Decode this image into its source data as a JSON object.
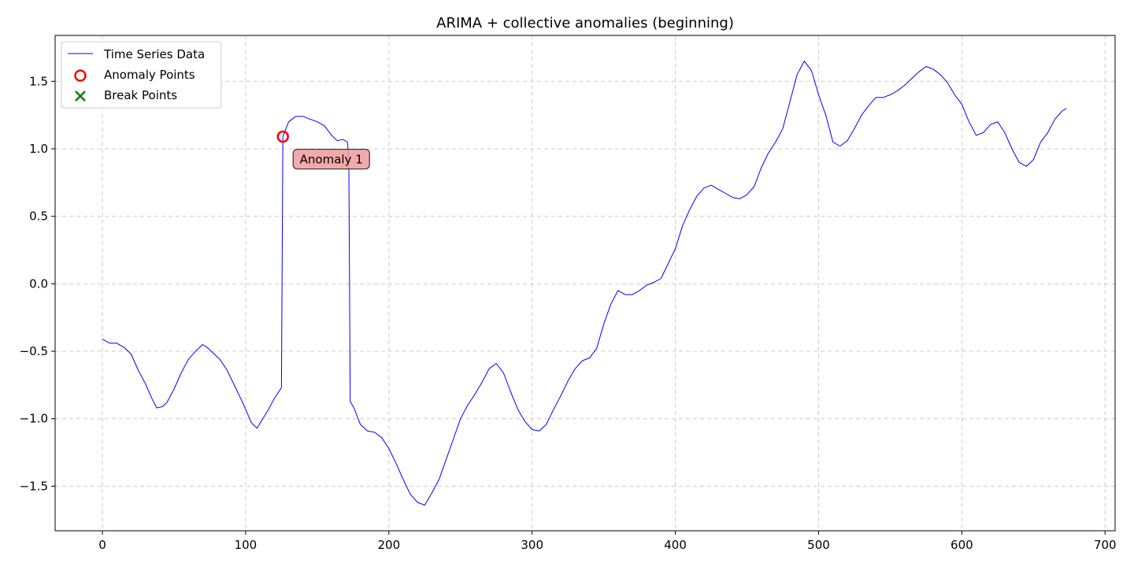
{
  "chart_data": {
    "type": "line",
    "title": "ARIMA + collective anomalies (beginning)",
    "xlabel": "",
    "ylabel": "",
    "xlim": [
      -33,
      707
    ],
    "ylim": [
      -1.83,
      1.84
    ],
    "xticks": [
      0,
      100,
      200,
      300,
      400,
      500,
      600,
      700
    ],
    "xtick_labels": [
      "0",
      "100",
      "200",
      "300",
      "400",
      "500",
      "600",
      "700"
    ],
    "yticks": [
      -1.5,
      -1.0,
      -0.5,
      0.0,
      0.5,
      1.0,
      1.5
    ],
    "ytick_labels": [
      "−1.5",
      "−1.0",
      "−0.5",
      "0.0",
      "0.5",
      "1.0",
      "1.5"
    ],
    "grid": true,
    "legend_position": "upper-left",
    "series": [
      {
        "name": "Time Series Data",
        "kind": "line",
        "color": "#0000ff",
        "points": [
          [
            0,
            -0.41
          ],
          [
            5,
            -0.44
          ],
          [
            10,
            -0.44
          ],
          [
            15,
            -0.47
          ],
          [
            20,
            -0.52
          ],
          [
            25,
            -0.64
          ],
          [
            30,
            -0.74
          ],
          [
            35,
            -0.86
          ],
          [
            38,
            -0.92
          ],
          [
            42,
            -0.91
          ],
          [
            45,
            -0.88
          ],
          [
            50,
            -0.78
          ],
          [
            55,
            -0.66
          ],
          [
            60,
            -0.56
          ],
          [
            65,
            -0.5
          ],
          [
            70,
            -0.45
          ],
          [
            73,
            -0.47
          ],
          [
            77,
            -0.51
          ],
          [
            82,
            -0.56
          ],
          [
            87,
            -0.64
          ],
          [
            92,
            -0.75
          ],
          [
            97,
            -0.86
          ],
          [
            100,
            -0.93
          ],
          [
            104,
            -1.03
          ],
          [
            108,
            -1.07
          ],
          [
            112,
            -1.0
          ],
          [
            116,
            -0.93
          ],
          [
            120,
            -0.85
          ],
          [
            125,
            -0.77
          ],
          [
            126,
            1.09
          ],
          [
            130,
            1.2
          ],
          [
            135,
            1.24
          ],
          [
            140,
            1.24
          ],
          [
            145,
            1.22
          ],
          [
            150,
            1.2
          ],
          [
            155,
            1.17
          ],
          [
            160,
            1.1
          ],
          [
            164,
            1.06
          ],
          [
            168,
            1.07
          ],
          [
            171,
            1.05
          ],
          [
            172,
            0.95
          ],
          [
            173,
            -0.87
          ],
          [
            176,
            -0.93
          ],
          [
            180,
            -1.04
          ],
          [
            185,
            -1.09
          ],
          [
            190,
            -1.1
          ],
          [
            195,
            -1.14
          ],
          [
            200,
            -1.22
          ],
          [
            205,
            -1.33
          ],
          [
            210,
            -1.45
          ],
          [
            215,
            -1.56
          ],
          [
            220,
            -1.62
          ],
          [
            225,
            -1.64
          ],
          [
            230,
            -1.55
          ],
          [
            235,
            -1.45
          ],
          [
            240,
            -1.3
          ],
          [
            245,
            -1.15
          ],
          [
            250,
            -1.0
          ],
          [
            255,
            -0.9
          ],
          [
            260,
            -0.82
          ],
          [
            265,
            -0.73
          ],
          [
            270,
            -0.63
          ],
          [
            275,
            -0.59
          ],
          [
            280,
            -0.66
          ],
          [
            285,
            -0.8
          ],
          [
            290,
            -0.93
          ],
          [
            295,
            -1.02
          ],
          [
            300,
            -1.08
          ],
          [
            305,
            -1.09
          ],
          [
            310,
            -1.04
          ],
          [
            315,
            -0.93
          ],
          [
            320,
            -0.83
          ],
          [
            325,
            -0.72
          ],
          [
            330,
            -0.63
          ],
          [
            335,
            -0.57
          ],
          [
            340,
            -0.55
          ],
          [
            345,
            -0.48
          ],
          [
            350,
            -0.3
          ],
          [
            355,
            -0.15
          ],
          [
            360,
            -0.05
          ],
          [
            365,
            -0.08
          ],
          [
            370,
            -0.08
          ],
          [
            375,
            -0.05
          ],
          [
            380,
            -0.01
          ],
          [
            385,
            0.01
          ],
          [
            390,
            0.04
          ],
          [
            395,
            0.15
          ],
          [
            400,
            0.26
          ],
          [
            405,
            0.43
          ],
          [
            410,
            0.55
          ],
          [
            415,
            0.65
          ],
          [
            420,
            0.71
          ],
          [
            425,
            0.73
          ],
          [
            430,
            0.7
          ],
          [
            435,
            0.67
          ],
          [
            440,
            0.64
          ],
          [
            445,
            0.63
          ],
          [
            450,
            0.66
          ],
          [
            455,
            0.72
          ],
          [
            460,
            0.86
          ],
          [
            465,
            0.97
          ],
          [
            470,
            1.05
          ],
          [
            475,
            1.15
          ],
          [
            480,
            1.35
          ],
          [
            485,
            1.55
          ],
          [
            490,
            1.65
          ],
          [
            495,
            1.58
          ],
          [
            500,
            1.4
          ],
          [
            505,
            1.25
          ],
          [
            510,
            1.05
          ],
          [
            515,
            1.02
          ],
          [
            520,
            1.06
          ],
          [
            525,
            1.15
          ],
          [
            530,
            1.25
          ],
          [
            535,
            1.32
          ],
          [
            540,
            1.38
          ],
          [
            545,
            1.38
          ],
          [
            550,
            1.4
          ],
          [
            555,
            1.43
          ],
          [
            560,
            1.47
          ],
          [
            565,
            1.52
          ],
          [
            570,
            1.57
          ],
          [
            575,
            1.61
          ],
          [
            580,
            1.59
          ],
          [
            585,
            1.55
          ],
          [
            590,
            1.49
          ],
          [
            595,
            1.4
          ],
          [
            600,
            1.33
          ],
          [
            605,
            1.2
          ],
          [
            610,
            1.1
          ],
          [
            615,
            1.12
          ],
          [
            620,
            1.18
          ],
          [
            625,
            1.2
          ],
          [
            630,
            1.12
          ],
          [
            635,
            1.0
          ],
          [
            640,
            0.9
          ],
          [
            645,
            0.87
          ],
          [
            650,
            0.92
          ],
          [
            655,
            1.05
          ],
          [
            660,
            1.12
          ],
          [
            665,
            1.22
          ],
          [
            670,
            1.28
          ],
          [
            673,
            1.3
          ]
        ]
      },
      {
        "name": "Anomaly Points",
        "kind": "marker",
        "marker": "open-circle",
        "color": "#ff0000",
        "points": [
          [
            126,
            1.09
          ]
        ]
      },
      {
        "name": "Break Points",
        "kind": "marker",
        "marker": "x",
        "color": "#008000",
        "points": []
      }
    ],
    "annotations": [
      {
        "text": "Anomaly 1",
        "x": 126,
        "y": 1.09,
        "bg_color": "#f0a0a0"
      }
    ]
  }
}
